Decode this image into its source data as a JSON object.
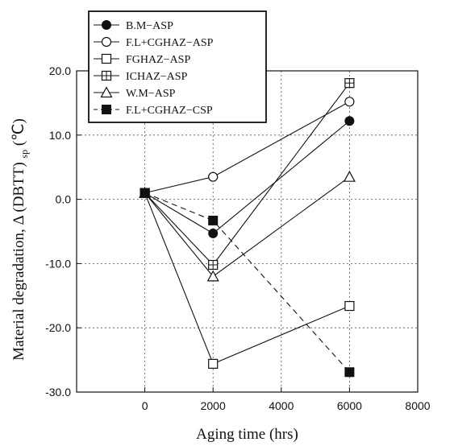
{
  "chart_data": {
    "type": "line",
    "title": "",
    "xlabel": "Aging time (hrs)",
    "ylabel": "Material degradation,  Δ (DBTT)",
    "ylabel_sub": "sp",
    "ylabel_unit": " (℃)",
    "xlim": [
      -2000,
      8000
    ],
    "ylim": [
      -30,
      20
    ],
    "x_ticks": [
      "0",
      "2000",
      "4000",
      "6000",
      "8000"
    ],
    "y_ticks": [
      "20.0",
      "10.0",
      "0.0",
      "-10.0",
      "-20.0",
      "-30.0"
    ],
    "grid": true,
    "legend_position": "top-left",
    "x": [
      0,
      2000,
      6000
    ],
    "series": [
      {
        "name": "B.M−ASP",
        "marker": "filled-circle",
        "line": "solid",
        "values": [
          1,
          -5.3,
          12.2
        ]
      },
      {
        "name": "F.L+CGHAZ−ASP",
        "marker": "open-circle",
        "line": "solid",
        "values": [
          1,
          3.5,
          15.2
        ]
      },
      {
        "name": "FGHAZ−ASP",
        "marker": "open-square",
        "line": "solid",
        "values": [
          1,
          -25.6,
          -16.6
        ]
      },
      {
        "name": "ICHAZ−ASP",
        "marker": "crossed-square",
        "line": "solid",
        "values": [
          1,
          -10.2,
          18.1
        ]
      },
      {
        "name": "W.M−ASP",
        "marker": "open-triangle",
        "line": "solid",
        "values": [
          1,
          -12,
          3.5
        ]
      },
      {
        "name": "F.L+CGHAZ−CSP",
        "marker": "filled-square",
        "line": "dashed",
        "values": [
          1,
          -3.3,
          -26.9
        ]
      }
    ]
  }
}
